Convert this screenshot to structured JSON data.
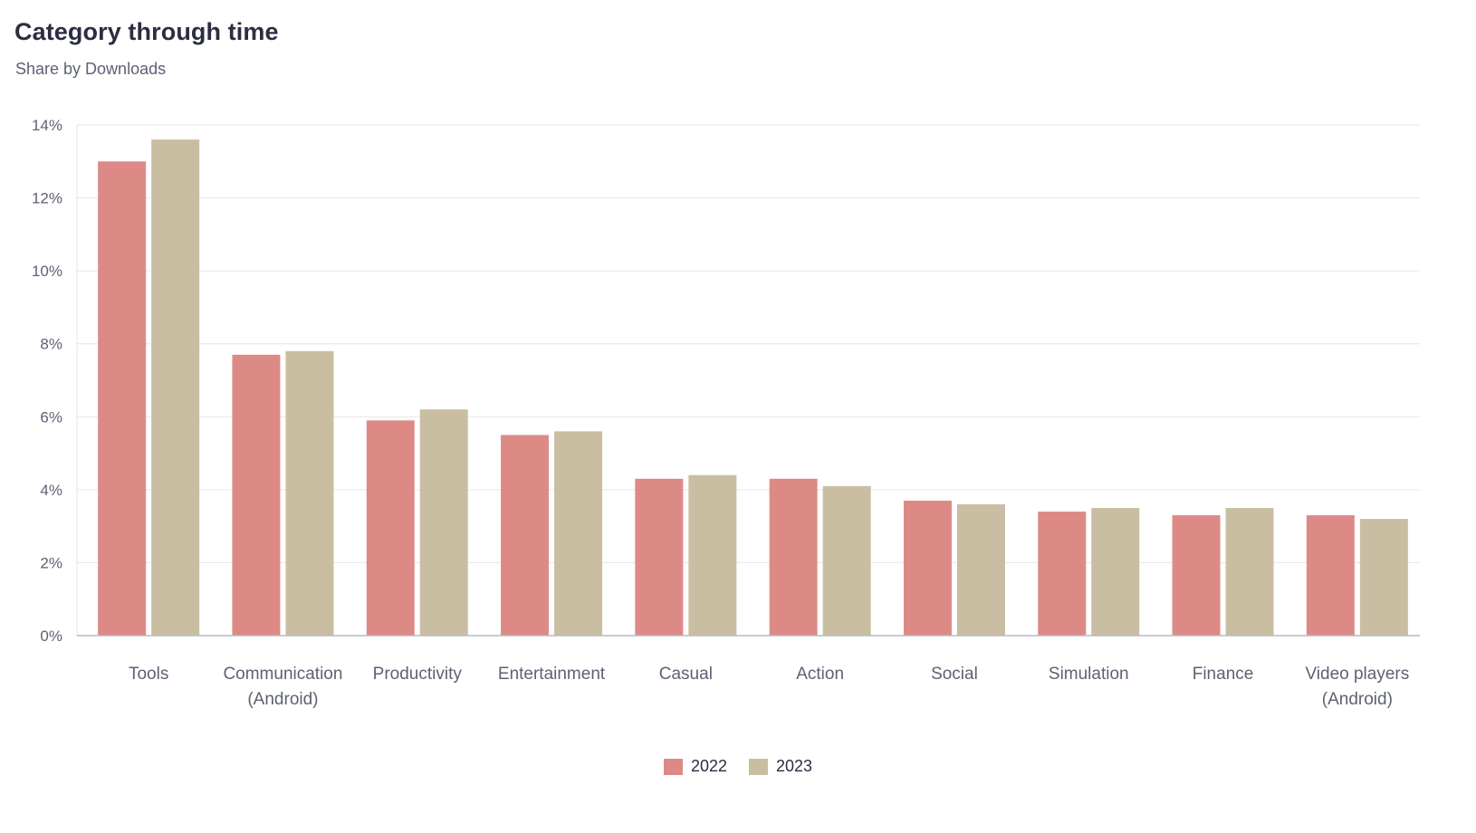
{
  "header": {
    "title": "Category through time",
    "subtitle": "Share by Downloads"
  },
  "chart_data": {
    "type": "bar",
    "categories": [
      [
        "Tools"
      ],
      [
        "Communication",
        "(Android)"
      ],
      [
        "Productivity"
      ],
      [
        "Entertainment"
      ],
      [
        "Casual"
      ],
      [
        "Action"
      ],
      [
        "Social"
      ],
      [
        "Simulation"
      ],
      [
        "Finance"
      ],
      [
        "Video players",
        "(Android)"
      ]
    ],
    "series": [
      {
        "name": "2022",
        "color": "#dd8a87",
        "values": [
          13.0,
          7.7,
          5.9,
          5.5,
          4.3,
          4.3,
          3.7,
          3.4,
          3.3,
          3.3
        ]
      },
      {
        "name": "2023",
        "color": "#c9bea1",
        "values": [
          13.6,
          7.8,
          6.2,
          5.6,
          4.4,
          4.1,
          3.6,
          3.5,
          3.5,
          3.2
        ]
      }
    ],
    "ylim": [
      0,
      14
    ],
    "yticks": [
      0,
      2,
      4,
      6,
      8,
      10,
      12,
      14
    ],
    "ytick_suffix": "%",
    "grid": true,
    "legend": "bottom-center"
  }
}
